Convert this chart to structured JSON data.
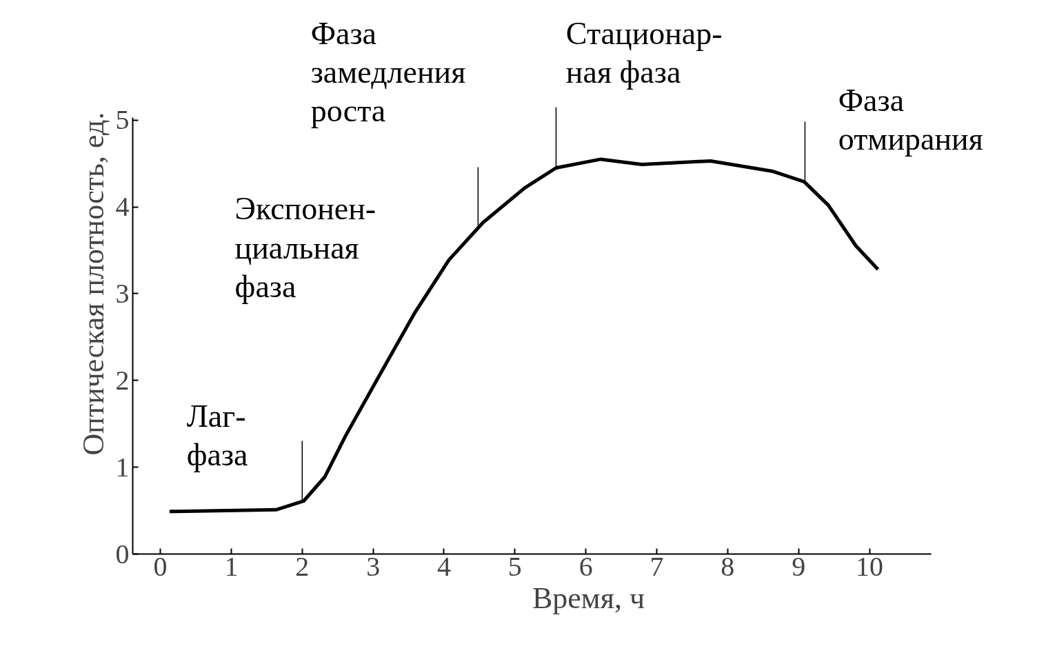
{
  "chart_data": {
    "type": "line",
    "xlabel": "Время,  ч",
    "ylabel": "Оптическая плотность,  ед.",
    "series": [
      {
        "color": "#000000",
        "x": [
          0.13,
          1.63,
          2.02,
          2.32,
          2.61,
          3.09,
          3.58,
          4.07,
          4.55,
          5.14,
          5.58,
          6.21,
          6.79,
          7.76,
          8.64,
          9.08,
          9.42,
          9.81,
          10.12
        ],
        "values": [
          0.49,
          0.51,
          0.61,
          0.89,
          1.36,
          2.06,
          2.77,
          3.39,
          3.82,
          4.22,
          4.45,
          4.55,
          4.49,
          4.53,
          4.41,
          4.29,
          4.02,
          3.55,
          3.28
        ]
      }
    ],
    "xlim": [
      -0.39,
      10.87
    ],
    "ylim": [
      0,
      5.03
    ],
    "xticks": [
      0,
      1,
      2,
      3,
      4,
      5,
      6,
      7,
      8,
      9,
      10
    ],
    "yticks": [
      0,
      1,
      2,
      3,
      4,
      5
    ],
    "grid": false,
    "marker": "none",
    "line_style": "solid",
    "ref_lines": [
      {
        "axis": "x",
        "value": 2.0
      },
      {
        "axis": "x",
        "value": 4.48
      },
      {
        "axis": "x",
        "value": 5.58
      },
      {
        "axis": "x",
        "value": 9.09
      }
    ],
    "annotations": [
      "Лаг-\nфаза",
      "Экспонен-\nциальная\nфаза",
      "Фаза\nзамедления\nроста",
      "Стационар-\nная фаза",
      "Фаза\nотмирания"
    ]
  }
}
